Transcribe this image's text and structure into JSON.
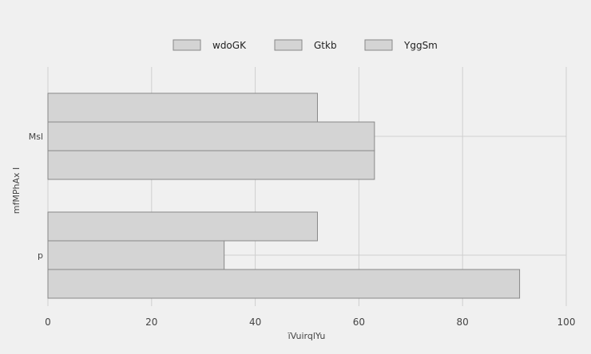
{
  "chart_data": {
    "type": "bar",
    "orientation": "horizontal",
    "categories": [
      "Msl",
      "p"
    ],
    "series": [
      {
        "name": "wdoGK",
        "values": [
          52,
          52
        ]
      },
      {
        "name": "Gtkb",
        "values": [
          63,
          34
        ]
      },
      {
        "name": "YggSm",
        "values": [
          63,
          91
        ]
      }
    ],
    "xlabel": "ïVuirqlYu",
    "ylabel": "mfMPhAx I",
    "xlim": [
      0,
      100
    ],
    "xticks": [
      "0",
      "20",
      "40",
      "60",
      "80",
      "100"
    ],
    "grid": true,
    "legend_position": "top-center",
    "colors": {
      "bar_fill": "#d4d4d4",
      "bar_stroke": "#888888",
      "grid": "#cfcfcf",
      "background": "#f0f0f0"
    }
  }
}
